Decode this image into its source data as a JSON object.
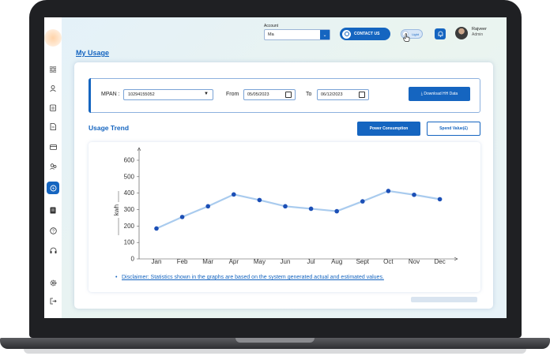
{
  "header": {
    "account_label": "Account",
    "account_value": "Ma",
    "contact_label": "CONTACT US",
    "theme_label": "Light",
    "user_name": "Rajveer",
    "user_role": "Admin"
  },
  "page": {
    "title": "My Usage"
  },
  "filters": {
    "mpan_label": "MPAN :",
    "mpan_value": "10294155052",
    "from_label": "From",
    "from_value": "05/05/2023",
    "to_label": "To",
    "to_value": "06/12/2023",
    "download_label": "⤓ Download HH Data"
  },
  "usage": {
    "section_title": "Usage Trend",
    "power_button": "Power Consumption",
    "spend_button": "Spend Value(£)",
    "disclaimer": "Disclaimer: Statistics shown in the graphs are based on the system generated actual and estimated values."
  },
  "sidebar": {
    "icons": [
      "grid-icon",
      "user-icon",
      "clipboard-icon",
      "document-icon",
      "card-icon",
      "users-icon",
      "usage-icon",
      "receipt-icon",
      "help-icon",
      "headset-icon",
      "settings-icon",
      "logout-icon"
    ]
  },
  "colors": {
    "accent": "#1565c0",
    "line": "#a9cbee",
    "point": "#1c4fb6"
  },
  "chart_data": {
    "type": "line",
    "categories": [
      "Jan",
      "Feb",
      "Mar",
      "Apr",
      "May",
      "Jun",
      "Jul",
      "Aug",
      "Sept",
      "Oct",
      "Nov",
      "Dec"
    ],
    "series": [
      {
        "values": [
          185,
          255,
          320,
          392,
          358,
          320,
          305,
          290,
          350,
          413,
          390,
          363
        ]
      }
    ],
    "ylabel": "kwh",
    "ylim": [
      0,
      600
    ],
    "yticks": [
      0,
      100,
      200,
      300,
      400,
      500,
      600
    ],
    "grid": false
  }
}
